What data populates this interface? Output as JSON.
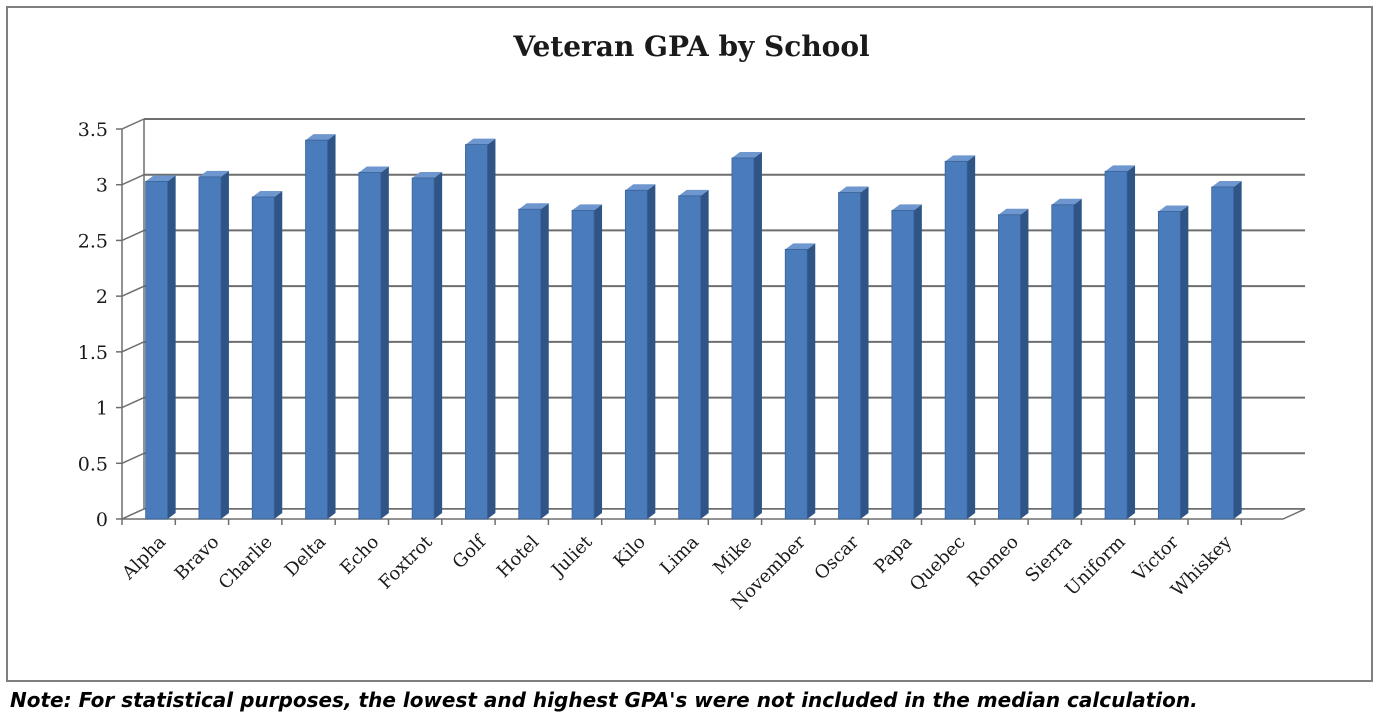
{
  "chart_data": {
    "type": "bar",
    "title": "Veteran GPA by School",
    "xlabel": "",
    "ylabel": "",
    "ylim": [
      0,
      3.5
    ],
    "yticks": [
      "0",
      "0.5",
      "1",
      "1.5",
      "2",
      "2.5",
      "3",
      "3.5"
    ],
    "grid": true,
    "legend": "none",
    "categories": [
      "Alpha",
      "Bravo",
      "Charlie",
      "Delta",
      "Echo",
      "Foxtrot",
      "Golf",
      "Hotel",
      "Juliet",
      "Kilo",
      "Lima",
      "Mike",
      "November",
      "Oscar",
      "Papa",
      "Quebec",
      "Romeo",
      "Sierra",
      "Uniform",
      "Victor",
      "Whiskey"
    ],
    "values": [
      3.03,
      3.07,
      2.89,
      3.4,
      3.11,
      3.06,
      3.36,
      2.78,
      2.77,
      2.95,
      2.9,
      3.24,
      2.42,
      2.93,
      2.77,
      3.21,
      2.73,
      2.82,
      3.12,
      2.76,
      2.98
    ],
    "bar_color": "#4a7bbb"
  },
  "note": "Note:  For statistical purposes, the lowest and highest GPA's were not included in the median calculation."
}
